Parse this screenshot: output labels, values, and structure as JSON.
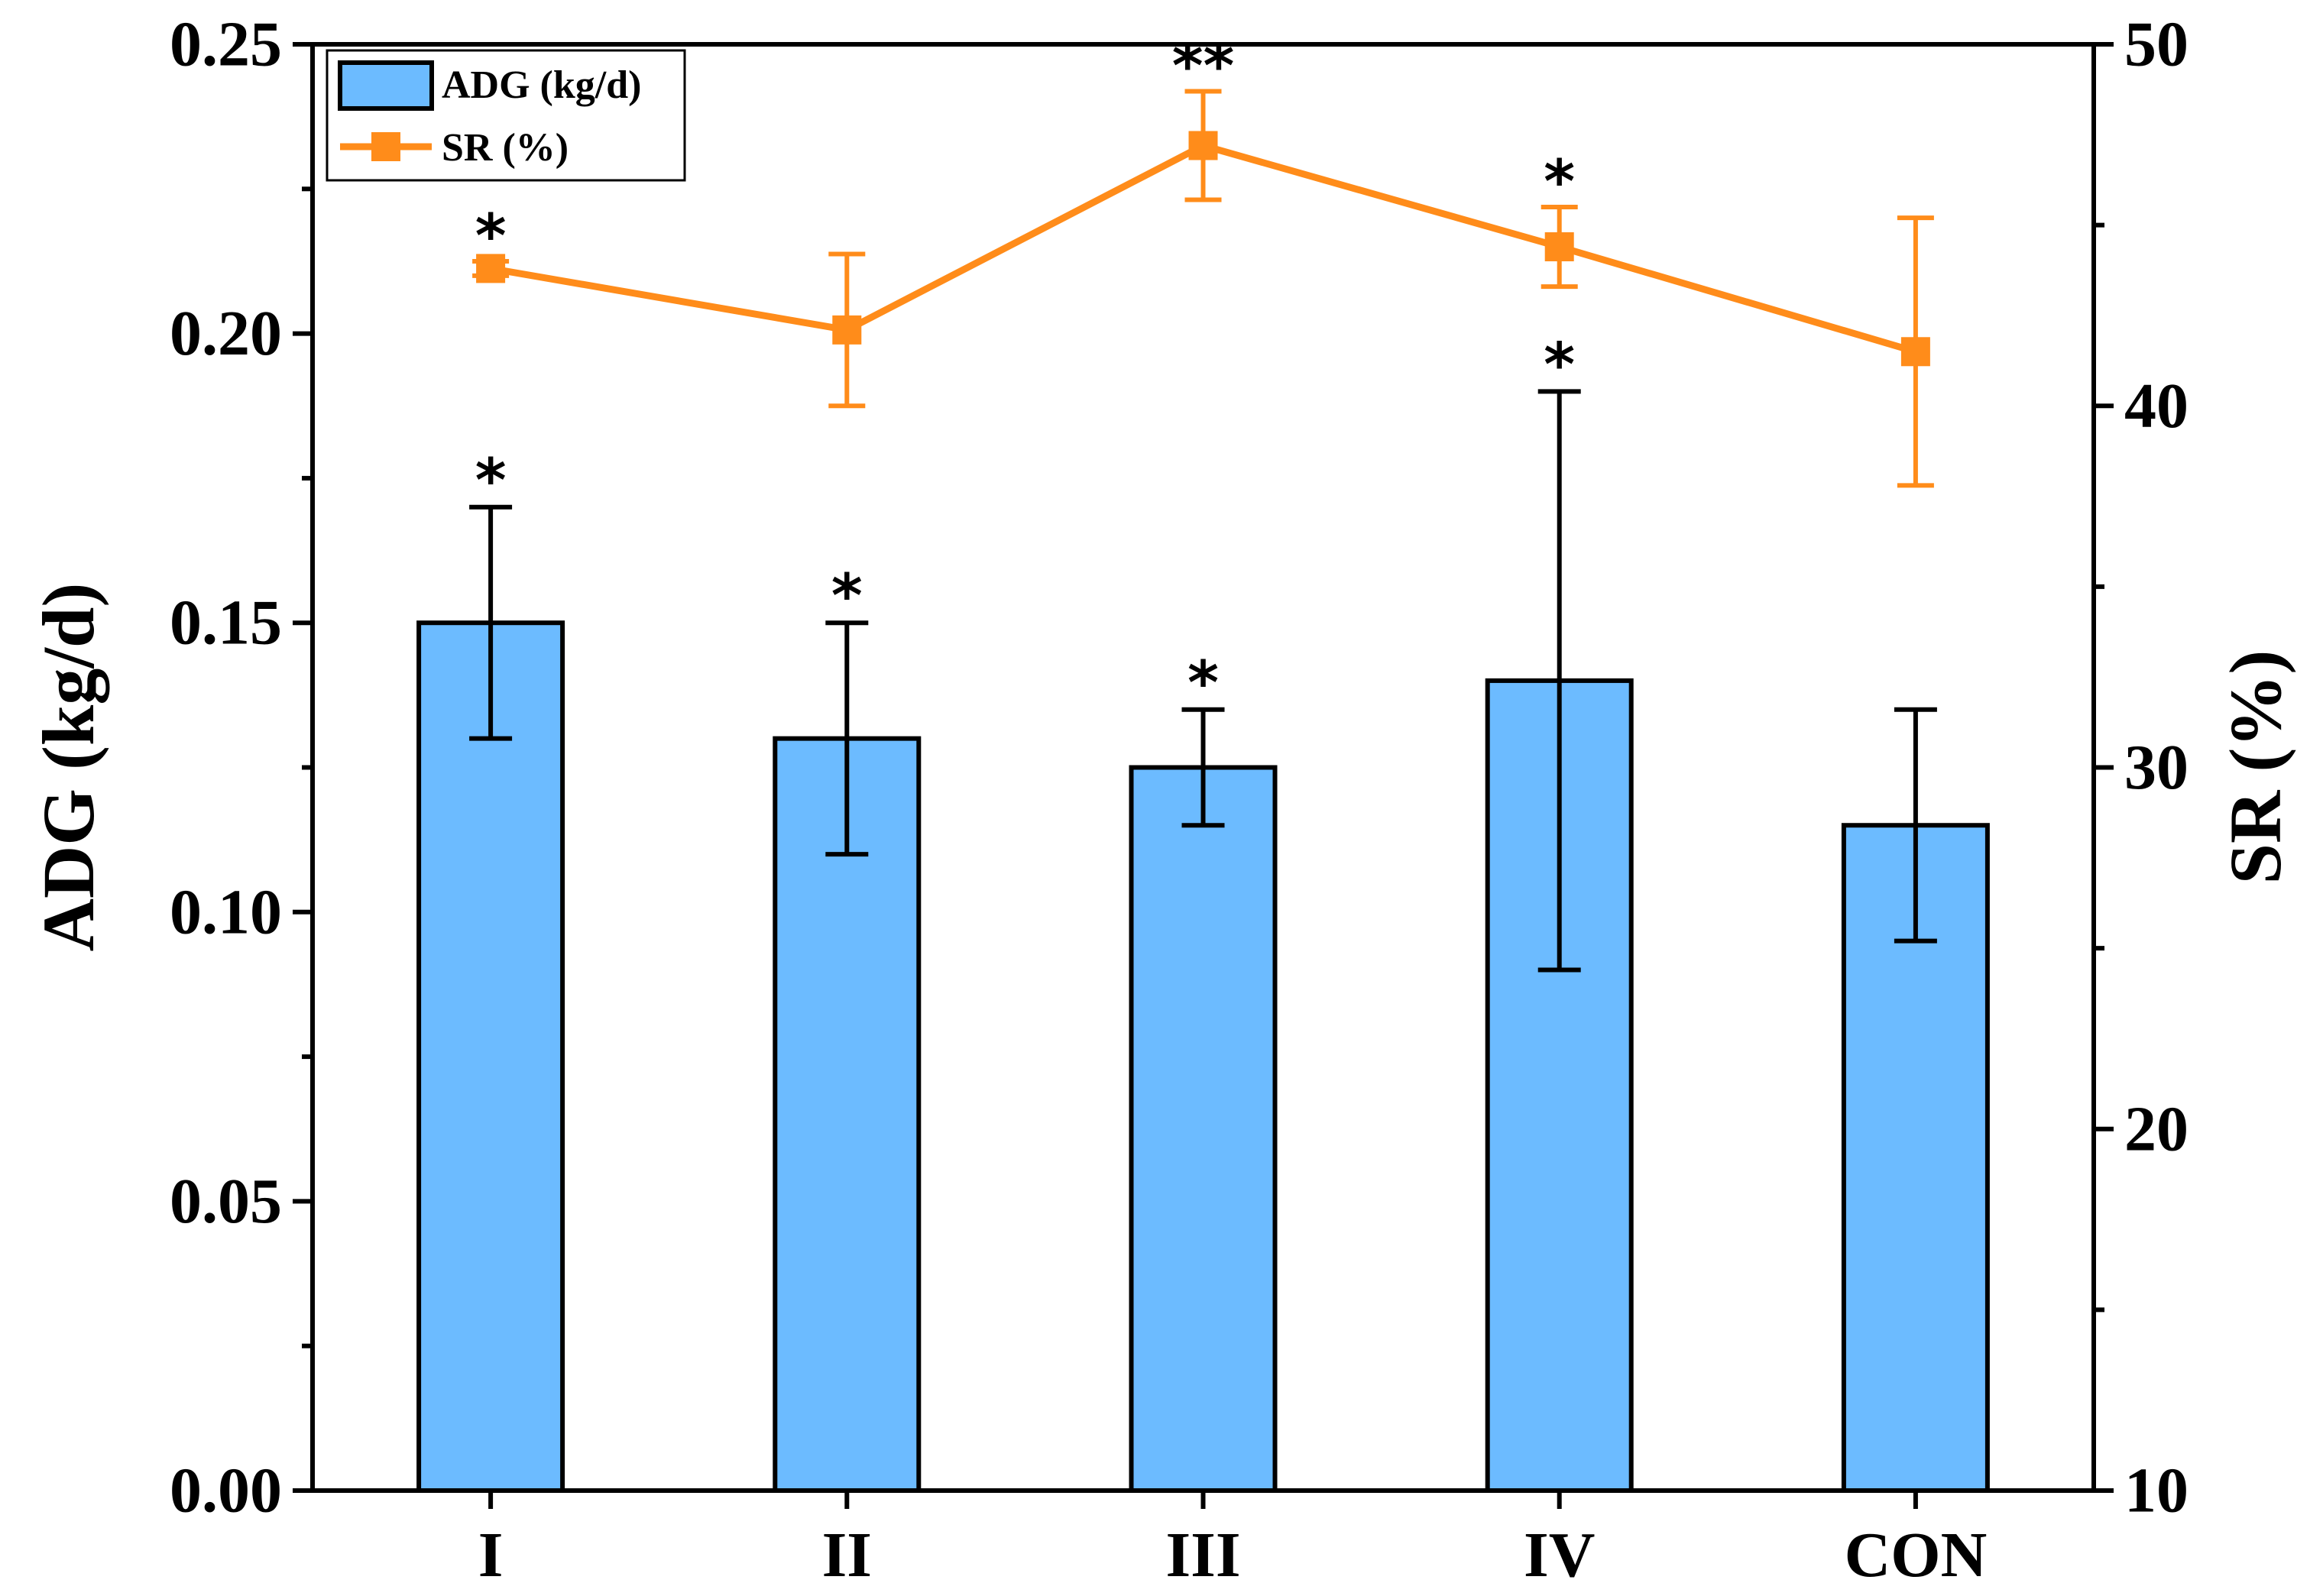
{
  "chart_data": {
    "type": "bar",
    "categories": [
      "I",
      "II",
      "III",
      "IV",
      "CON"
    ],
    "series": [
      {
        "name": "ADG (kg/d)",
        "kind": "bar",
        "axis": "left",
        "values": [
          0.15,
          0.13,
          0.125,
          0.14,
          0.115
        ],
        "errors": [
          0.02,
          0.02,
          0.01,
          0.05,
          0.02
        ],
        "significance": [
          "*",
          "*",
          "*",
          "*",
          ""
        ],
        "color": "#6cbbff"
      },
      {
        "name": "SR (%)",
        "kind": "line",
        "marker": "square",
        "axis": "right",
        "values": [
          43.8,
          42.1,
          47.2,
          44.4,
          41.5
        ],
        "errors": [
          0.2,
          2.1,
          1.5,
          1.1,
          3.7
        ],
        "significance": [
          "*",
          "",
          "**",
          "*",
          ""
        ],
        "color": "#ff8c1a"
      }
    ],
    "ylabel": "ADG (kg/d)",
    "ylabel_right": "SR (%)",
    "xlabel": "",
    "ylim": [
      0,
      0.25
    ],
    "ylim_right": [
      10,
      50
    ],
    "yticks": [
      "0.00",
      "0.05",
      "0.10",
      "0.15",
      "0.20",
      "0.25"
    ],
    "yticks_right": [
      "10",
      "20",
      "30",
      "40",
      "50"
    ],
    "legend_position": "top-left",
    "grid": false
  }
}
